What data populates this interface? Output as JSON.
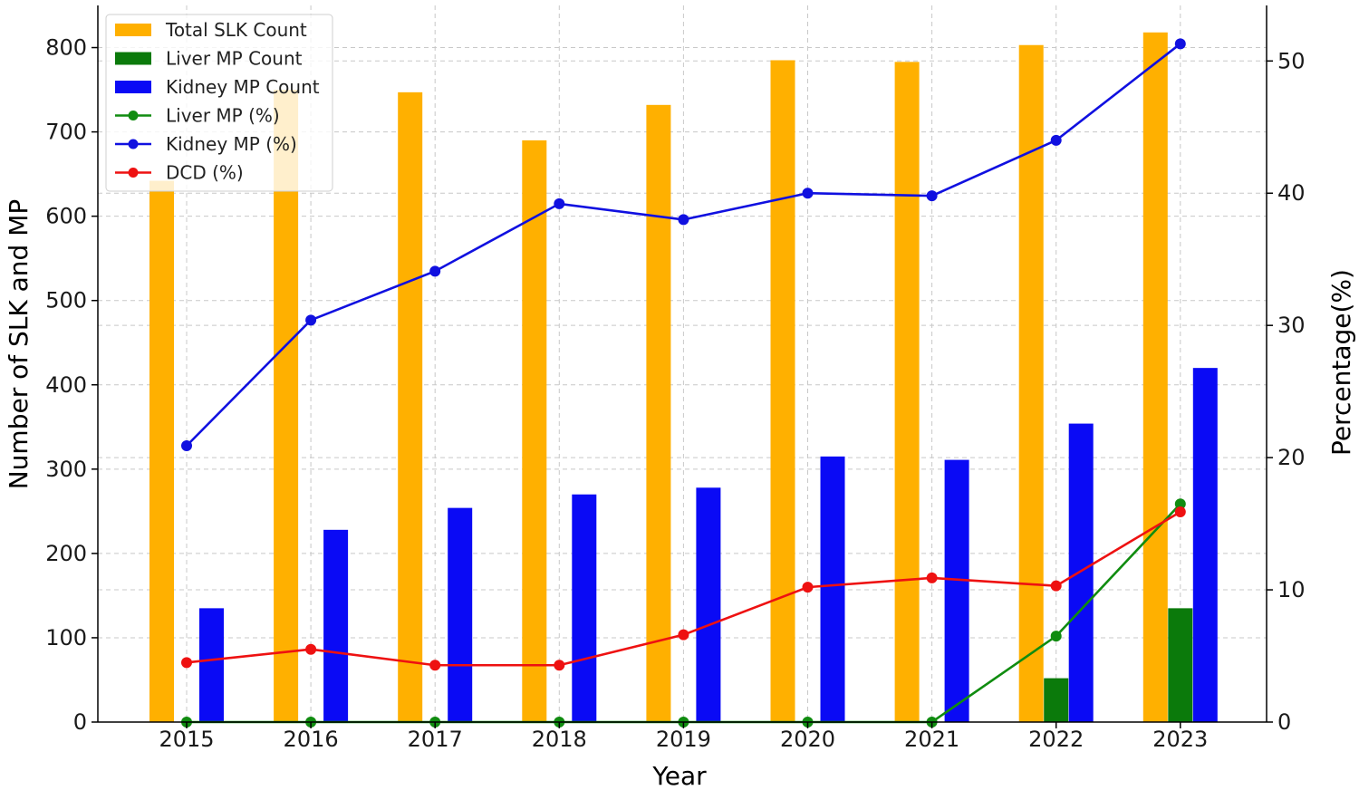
{
  "chart_data": {
    "type": "bar",
    "title": "",
    "xlabel": "Year",
    "ylabel": "Number of SLK and MP",
    "y2label": "Percentage(%)",
    "categories": [
      "2015",
      "2016",
      "2017",
      "2018",
      "2019",
      "2020",
      "2021",
      "2022",
      "2023"
    ],
    "ylim": [
      0,
      850
    ],
    "y2lim": [
      0,
      54.2
    ],
    "yticks": [
      0,
      100,
      200,
      300,
      400,
      500,
      600,
      700,
      800
    ],
    "y2ticks": [
      0,
      10,
      20,
      30,
      40,
      50
    ],
    "grid": true,
    "legend_position": "top-left",
    "bar_series": [
      {
        "name": "Total SLK Count",
        "color": "#FFB000",
        "values": [
          642,
          750,
          747,
          690,
          732,
          785,
          783,
          803,
          818
        ]
      },
      {
        "name": "Liver MP Count",
        "color": "#0B7A0B",
        "values": [
          0,
          0,
          0,
          0,
          0,
          0,
          0,
          52,
          135
        ]
      },
      {
        "name": "Kidney MP Count",
        "color": "#0A0AF5",
        "values": [
          135,
          228,
          254,
          270,
          278,
          315,
          311,
          354,
          420
        ]
      }
    ],
    "line_series": [
      {
        "name": "Liver MP (%)",
        "color": "#108C10",
        "axis": "right",
        "values": [
          0,
          0,
          0,
          0,
          0,
          0,
          0,
          6.5,
          16.5
        ]
      },
      {
        "name": "Kidney MP (%)",
        "color": "#1010E0",
        "axis": "right",
        "values": [
          20.9,
          30.4,
          34.1,
          39.2,
          38.0,
          40.0,
          39.8,
          44.0,
          51.3
        ]
      },
      {
        "name": "DCD (%)",
        "color": "#EE1111",
        "axis": "right",
        "values": [
          4.5,
          5.5,
          4.3,
          4.3,
          6.6,
          10.2,
          10.9,
          10.3,
          15.9
        ]
      }
    ]
  }
}
